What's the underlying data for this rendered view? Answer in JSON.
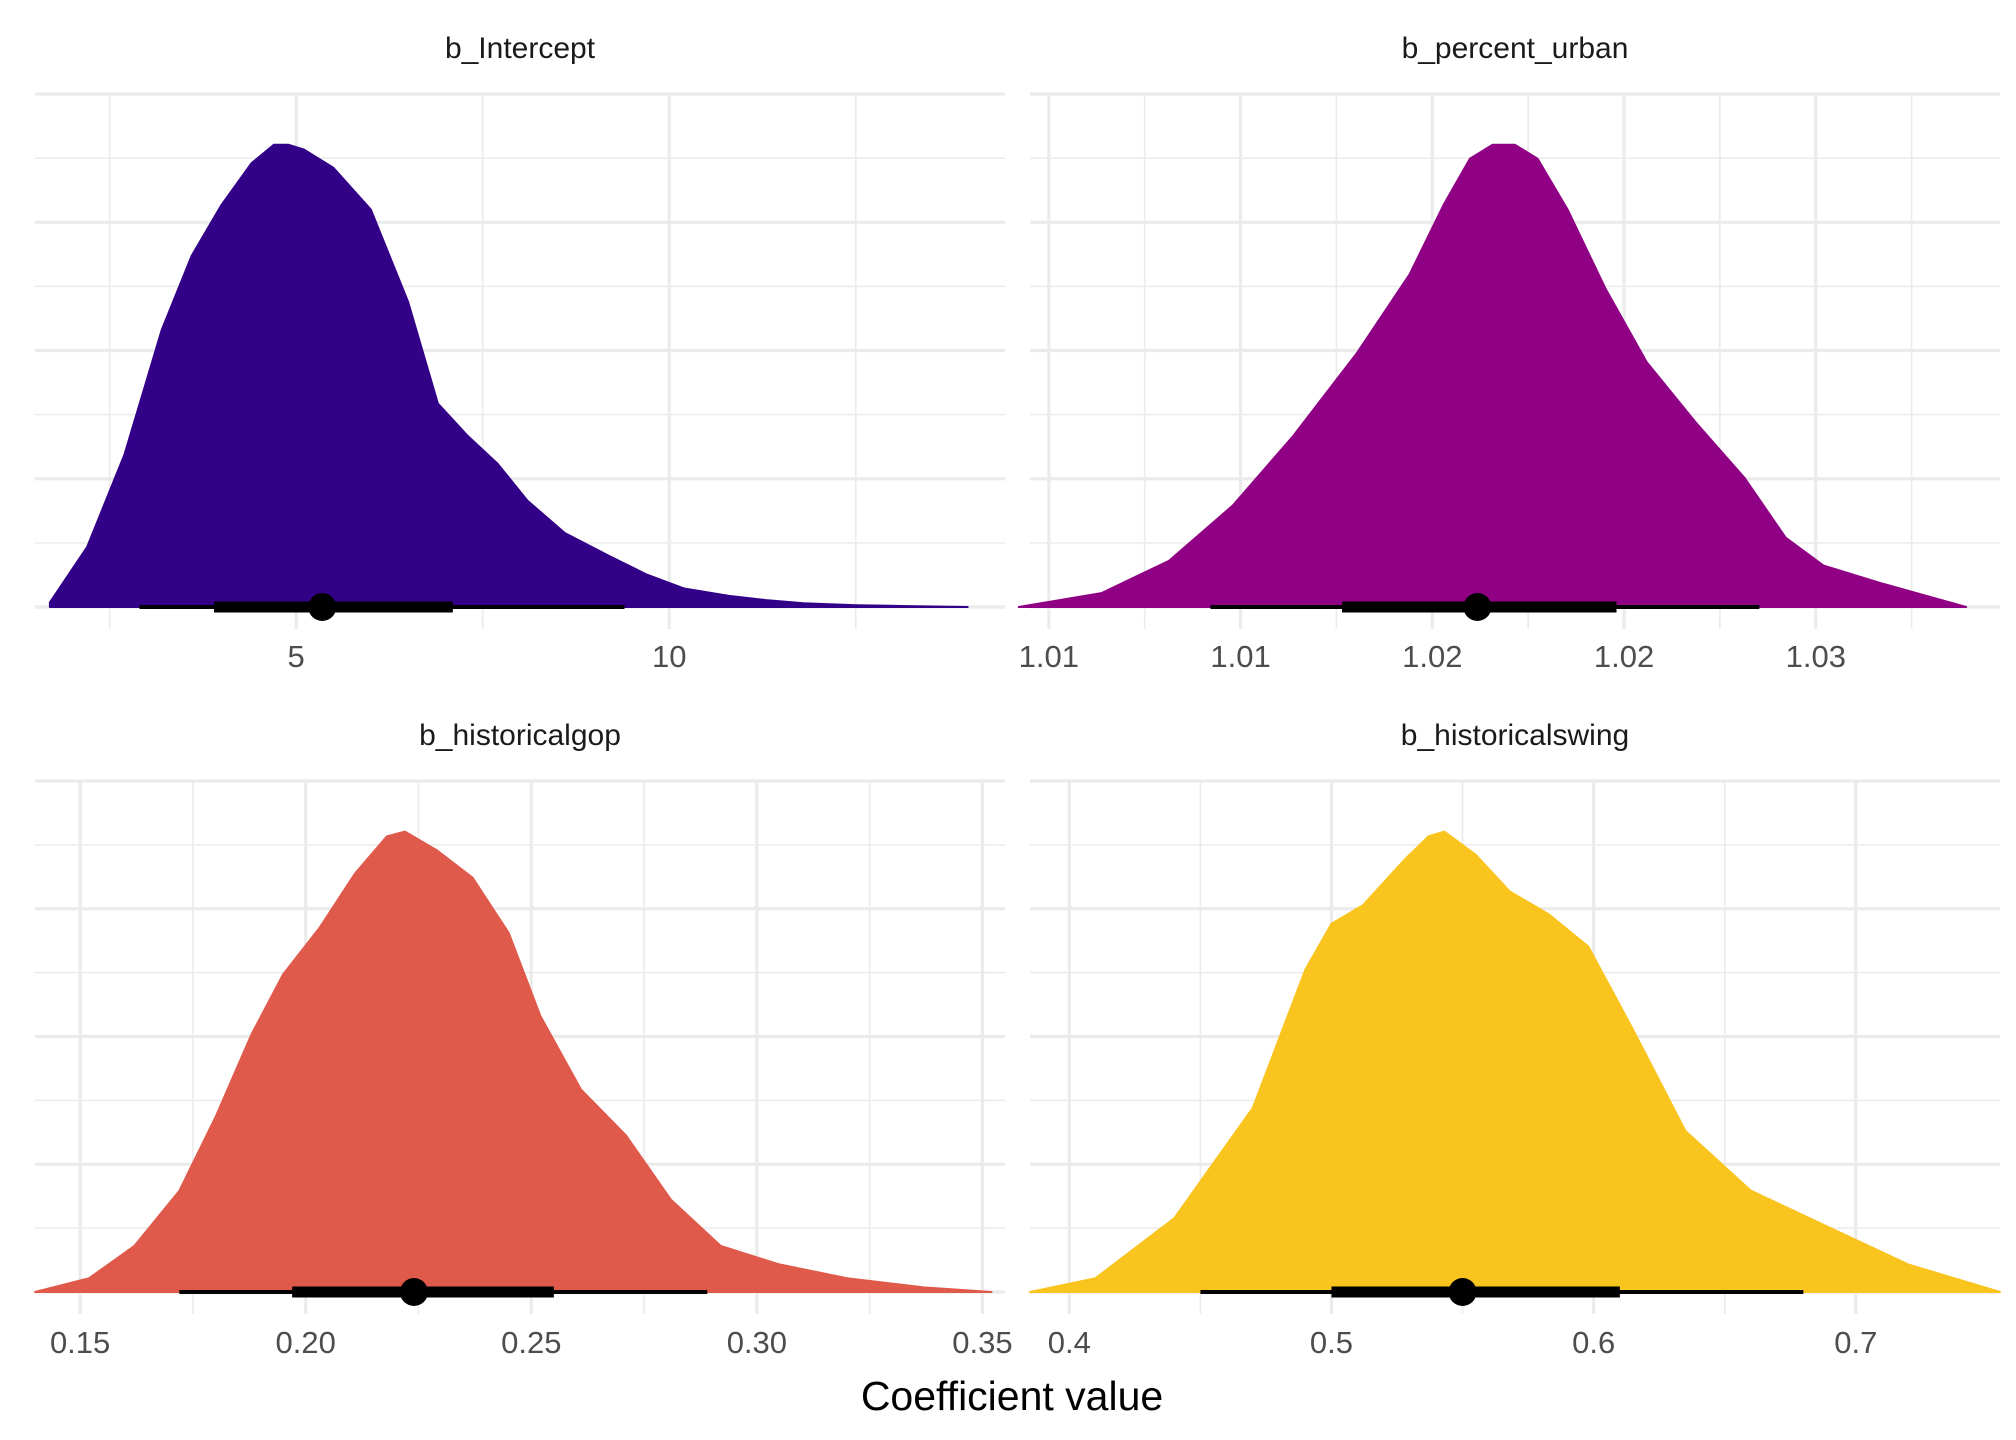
{
  "figure": {
    "xlabel": "Coefficient value"
  },
  "chart_data": [
    {
      "type": "area",
      "title": "b_Intercept",
      "color": "#330088",
      "xlim": [
        1.5,
        14.5
      ],
      "ticks": [
        5,
        10
      ],
      "tick_labels": [
        "5",
        "10"
      ],
      "minor_ticks": [
        2.5,
        7.5,
        12.5
      ],
      "x": [
        1.7,
        2.2,
        2.7,
        3.2,
        3.6,
        4.0,
        4.4,
        4.7,
        4.9,
        5.1,
        5.5,
        6.0,
        6.5,
        6.9,
        7.3,
        7.7,
        8.1,
        8.6,
        9.2,
        9.7,
        10.2,
        10.8,
        11.3,
        11.8,
        12.5,
        13.2,
        14.0
      ],
      "density": [
        0.01,
        0.13,
        0.33,
        0.6,
        0.76,
        0.87,
        0.96,
        1.0,
        1.0,
        0.99,
        0.95,
        0.86,
        0.66,
        0.44,
        0.37,
        0.31,
        0.23,
        0.16,
        0.11,
        0.07,
        0.04,
        0.024,
        0.015,
        0.008,
        0.004,
        0.002,
        0.0
      ],
      "point": 5.35,
      "interval_66": [
        3.9,
        7.1
      ],
      "interval_95": [
        2.9,
        9.4
      ]
    },
    {
      "type": "area",
      "title": "b_percent_urban",
      "color": "#900084",
      "xlim": [
        1.0085,
        1.0343
      ],
      "ticks": [
        1.009,
        1.0141,
        1.0192,
        1.0243,
        1.0294
      ],
      "tick_labels": [
        "1.01",
        "1.01",
        "1.02",
        "1.02",
        "1.03"
      ],
      "minor_ticks": [
        1.01155,
        1.01665,
        1.02175,
        1.02685,
        1.03195
      ],
      "x": [
        1.0082,
        1.0104,
        1.0122,
        1.0139,
        1.0155,
        1.0172,
        1.0186,
        1.0195,
        1.0202,
        1.0208,
        1.0214,
        1.022,
        1.0228,
        1.0238,
        1.0249,
        1.0262,
        1.0275,
        1.0286,
        1.0296,
        1.0312,
        1.0334
      ],
      "density": [
        0.0,
        0.03,
        0.1,
        0.22,
        0.37,
        0.55,
        0.72,
        0.87,
        0.97,
        1.0,
        1.0,
        0.97,
        0.86,
        0.69,
        0.53,
        0.4,
        0.28,
        0.15,
        0.09,
        0.05,
        0.0
      ],
      "point": 1.0204,
      "interval_66": [
        1.0168,
        1.0241
      ],
      "interval_95": [
        1.0133,
        1.0279
      ]
    },
    {
      "type": "area",
      "title": "b_historicalgop",
      "color": "#E05A4C",
      "xlim": [
        0.14,
        0.355
      ],
      "ticks": [
        0.15,
        0.2,
        0.25,
        0.3,
        0.35
      ],
      "tick_labels": [
        "0.15",
        "0.20",
        "0.25",
        "0.30",
        "0.35"
      ],
      "minor_ticks": [
        0.175,
        0.225,
        0.275,
        0.325
      ],
      "x": [
        0.14,
        0.152,
        0.162,
        0.172,
        0.18,
        0.188,
        0.195,
        0.203,
        0.211,
        0.218,
        0.222,
        0.229,
        0.237,
        0.245,
        0.252,
        0.261,
        0.271,
        0.281,
        0.292,
        0.305,
        0.32,
        0.337,
        0.352
      ],
      "density": [
        0.0,
        0.03,
        0.1,
        0.22,
        0.38,
        0.56,
        0.69,
        0.79,
        0.91,
        0.99,
        1.0,
        0.96,
        0.9,
        0.78,
        0.6,
        0.44,
        0.34,
        0.2,
        0.1,
        0.06,
        0.03,
        0.01,
        0.0
      ],
      "point": 0.224,
      "interval_66": [
        0.197,
        0.255
      ],
      "interval_95": [
        0.172,
        0.289
      ]
    },
    {
      "type": "area",
      "title": "b_historicalswing",
      "color": "#F9C41E",
      "xlim": [
        0.385,
        0.755
      ],
      "ticks": [
        0.4,
        0.5,
        0.6,
        0.7
      ],
      "tick_labels": [
        "0.4",
        "0.5",
        "0.6",
        "0.7"
      ],
      "minor_ticks": [
        0.45,
        0.55,
        0.65
      ],
      "x": [
        0.385,
        0.41,
        0.44,
        0.47,
        0.49,
        0.5,
        0.512,
        0.528,
        0.537,
        0.543,
        0.555,
        0.568,
        0.583,
        0.598,
        0.615,
        0.635,
        0.66,
        0.69,
        0.72,
        0.755
      ],
      "density": [
        0.0,
        0.03,
        0.16,
        0.4,
        0.7,
        0.8,
        0.84,
        0.94,
        0.99,
        1.0,
        0.95,
        0.87,
        0.82,
        0.75,
        0.57,
        0.35,
        0.22,
        0.14,
        0.06,
        0.0
      ],
      "point": 0.55,
      "interval_66": [
        0.5,
        0.61
      ],
      "interval_95": [
        0.45,
        0.68
      ]
    }
  ]
}
